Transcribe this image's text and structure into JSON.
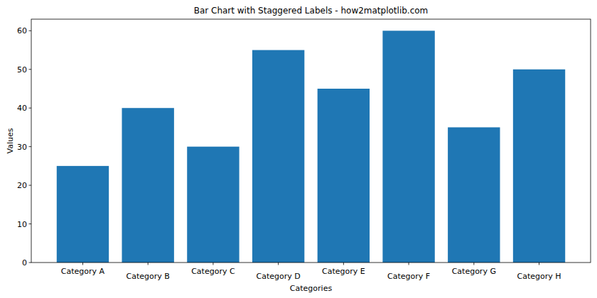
{
  "chart_data": {
    "type": "bar",
    "title": "Bar Chart with Staggered Labels - how2matplotlib.com",
    "x_label": "Categories",
    "y_label": "Values",
    "categories": [
      "Category A",
      "Category B",
      "Category C",
      "Category D",
      "Category E",
      "Category F",
      "Category G",
      "Category H"
    ],
    "values": [
      25,
      40,
      30,
      55,
      45,
      60,
      35,
      50
    ],
    "color": "#1f77b4",
    "ylim": [
      0,
      63
    ],
    "yticks": [
      0,
      10,
      20,
      30,
      40,
      50,
      60
    ],
    "grid": false
  }
}
